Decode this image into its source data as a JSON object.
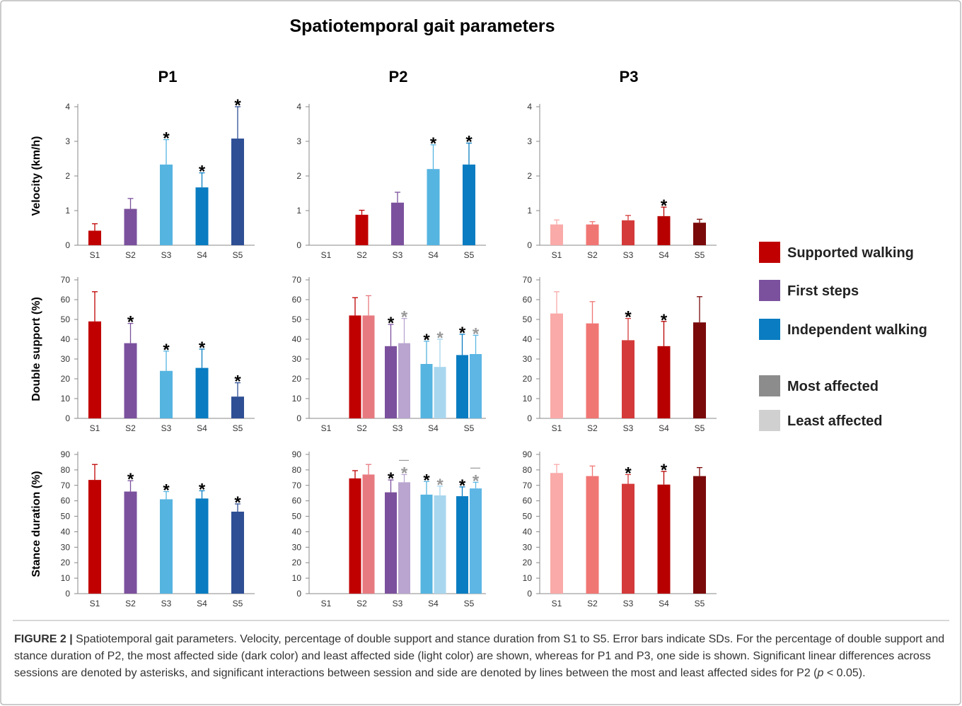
{
  "figure": {
    "title": "Spatiotemporal gait parameters",
    "columns": [
      "P1",
      "P2",
      "P3"
    ],
    "legend": [
      {
        "name": "Supported walking",
        "color": "#c00000"
      },
      {
        "name": "First steps",
        "color": "#7b519d"
      },
      {
        "name": "Independent walking",
        "color": "#0a7cc1"
      },
      {
        "name": "Most affected",
        "color": "#8c8c8c"
      },
      {
        "name": "Least affected",
        "color": "#d0d0d0"
      }
    ],
    "caption": {
      "label": "FIGURE 2 |",
      "text": " Spatiotemporal gait parameters. Velocity, percentage of double support and stance duration from S1 to S5. Error bars indicate SDs. For the percentage of double support and stance duration of P2, the most affected side (dark color) and least affected side (light color) are shown, whereas for P1 and P3, one side is shown. Significant linear differences across sessions are denoted by asterisks, and significant interactions between session and side are denoted by lines between the most and least affected sides for P2 (",
      "italic": "p",
      "end": " < 0.05)."
    }
  },
  "chart_data": [
    {
      "type": "bar",
      "ylabel": "Velocity (km/h)",
      "categories": [
        "S1",
        "S2",
        "S3",
        "S4",
        "S5"
      ],
      "ylim": [
        0,
        4
      ],
      "yticks": [
        0,
        1,
        2,
        3,
        4
      ],
      "series": [
        {
          "colors": [
            "#c00000",
            "#7b519d",
            "#56b4e0",
            "#0a7cc1",
            "#2e4f94"
          ],
          "values": [
            0.42,
            1.05,
            2.33,
            1.67,
            3.08
          ],
          "errors": [
            0.2,
            0.3,
            0.72,
            0.42,
            0.92
          ],
          "asterisks": [
            null,
            null,
            "*",
            "*",
            "*"
          ],
          "asterisk_color": "#000000"
        }
      ]
    },
    {
      "type": "bar",
      "categories": [
        "S1",
        "S2",
        "S3",
        "S4",
        "S5"
      ],
      "ylim": [
        0,
        4
      ],
      "yticks": [
        0,
        1,
        2,
        3,
        4
      ],
      "series": [
        {
          "colors": [
            null,
            "#c00000",
            "#7b519d",
            "#56b4e0",
            "#0a7cc1"
          ],
          "values": [
            null,
            0.88,
            1.23,
            2.2,
            2.33
          ],
          "errors": [
            null,
            0.13,
            0.3,
            0.7,
            0.62
          ],
          "asterisks": [
            null,
            null,
            null,
            "*",
            "*"
          ],
          "asterisk_color": "#000000"
        }
      ]
    },
    {
      "type": "bar",
      "categories": [
        "S1",
        "S2",
        "S3",
        "S4",
        "S5"
      ],
      "ylim": [
        0,
        4
      ],
      "yticks": [
        0,
        1,
        2,
        3,
        4
      ],
      "series": [
        {
          "colors": [
            "#f9aaa9",
            "#f07674",
            "#d43a3a",
            "#b70000",
            "#7a0a0a"
          ],
          "values": [
            0.6,
            0.6,
            0.72,
            0.84,
            0.65
          ],
          "errors": [
            0.13,
            0.08,
            0.14,
            0.26,
            0.1
          ],
          "asterisks": [
            null,
            null,
            null,
            "*",
            null
          ],
          "asterisk_color": "#000000"
        }
      ]
    },
    {
      "type": "bar",
      "ylabel": "Double support (%)",
      "categories": [
        "S1",
        "S2",
        "S3",
        "S4",
        "S5"
      ],
      "ylim": [
        0,
        70
      ],
      "yticks": [
        0,
        10,
        20,
        30,
        40,
        50,
        60,
        70
      ],
      "series": [
        {
          "colors": [
            "#c00000",
            "#7b519d",
            "#56b4e0",
            "#0a7cc1",
            "#2e4f94"
          ],
          "values": [
            49,
            38,
            24,
            25.5,
            11
          ],
          "errors": [
            15,
            10,
            10,
            9.5,
            7
          ],
          "asterisks": [
            null,
            "*",
            "*",
            "*",
            "*"
          ],
          "asterisk_color": "#000000"
        }
      ]
    },
    {
      "type": "bar",
      "categories": [
        "S1",
        "S2",
        "S3",
        "S4",
        "S5"
      ],
      "ylim": [
        0,
        70
      ],
      "yticks": [
        0,
        10,
        20,
        30,
        40,
        50,
        60,
        70
      ],
      "series": [
        {
          "colors": [
            null,
            "#c00000",
            "#7b519d",
            "#56b4e0",
            "#0a7cc1"
          ],
          "values": [
            null,
            52,
            36.5,
            27.5,
            32
          ],
          "errors": [
            null,
            9,
            11,
            11.5,
            10.5
          ],
          "asterisks": [
            null,
            null,
            "*",
            "*",
            "*"
          ],
          "asterisk_color": "#000000"
        },
        {
          "colors": [
            null,
            "#e77a80",
            "#b9a5cf",
            "#a8d6ee",
            "#5db6e4"
          ],
          "values": [
            null,
            52,
            38,
            26,
            32.5
          ],
          "errors": [
            null,
            10,
            12.5,
            14,
            9.5
          ],
          "asterisks": [
            null,
            null,
            "*",
            "*",
            "*"
          ],
          "asterisk_color": "#999999"
        }
      ]
    },
    {
      "type": "bar",
      "categories": [
        "S1",
        "S2",
        "S3",
        "S4",
        "S5"
      ],
      "ylim": [
        0,
        70
      ],
      "yticks": [
        0,
        10,
        20,
        30,
        40,
        50,
        60,
        70
      ],
      "series": [
        {
          "colors": [
            "#f9aaa9",
            "#f07674",
            "#d43a3a",
            "#b70000",
            "#7a0a0a"
          ],
          "values": [
            53,
            48,
            39.5,
            36.5,
            48.5
          ],
          "errors": [
            11,
            11,
            11,
            12.5,
            13
          ],
          "asterisks": [
            null,
            null,
            "*",
            "*",
            null
          ],
          "asterisk_color": "#000000"
        }
      ]
    },
    {
      "type": "bar",
      "ylabel": "Stance duration (%)",
      "categories": [
        "S1",
        "S2",
        "S3",
        "S4",
        "S5"
      ],
      "ylim": [
        0,
        90
      ],
      "yticks": [
        0,
        10,
        20,
        30,
        40,
        50,
        60,
        70,
        80,
        90
      ],
      "series": [
        {
          "colors": [
            "#c00000",
            "#7b519d",
            "#56b4e0",
            "#0a7cc1",
            "#2e4f94"
          ],
          "values": [
            73.5,
            66,
            61,
            61.5,
            53
          ],
          "errors": [
            10,
            7,
            5,
            5,
            5
          ],
          "asterisks": [
            null,
            "*",
            "*",
            "*",
            "*"
          ],
          "asterisk_color": "#000000"
        }
      ]
    },
    {
      "type": "bar",
      "categories": [
        "S1",
        "S2",
        "S3",
        "S4",
        "S5"
      ],
      "ylim": [
        0,
        90
      ],
      "yticks": [
        0,
        10,
        20,
        30,
        40,
        50,
        60,
        70,
        80,
        90
      ],
      "interaction": [
        false,
        false,
        true,
        false,
        true
      ],
      "series": [
        {
          "colors": [
            null,
            "#c00000",
            "#7b519d",
            "#56b4e0",
            "#0a7cc1"
          ],
          "values": [
            null,
            74.5,
            65.5,
            64,
            63
          ],
          "errors": [
            null,
            5,
            8,
            8.5,
            6
          ],
          "asterisks": [
            null,
            null,
            "*",
            "*",
            "*"
          ],
          "asterisk_color": "#000000"
        },
        {
          "colors": [
            null,
            "#e77a80",
            "#b9a5cf",
            "#a8d6ee",
            "#5db6e4"
          ],
          "values": [
            null,
            77,
            72,
            63.5,
            68
          ],
          "errors": [
            null,
            6.5,
            5,
            6,
            4
          ],
          "asterisks": [
            null,
            null,
            "*",
            "*",
            "*"
          ],
          "asterisk_color": "#999999"
        }
      ]
    },
    {
      "type": "bar",
      "categories": [
        "S1",
        "S2",
        "S3",
        "S4",
        "S5"
      ],
      "ylim": [
        0,
        90
      ],
      "yticks": [
        0,
        10,
        20,
        30,
        40,
        50,
        60,
        70,
        80,
        90
      ],
      "series": [
        {
          "colors": [
            "#f9aaa9",
            "#f07674",
            "#d43a3a",
            "#b70000",
            "#7a0a0a"
          ],
          "values": [
            78,
            76,
            71,
            70.5,
            76
          ],
          "errors": [
            5.5,
            6.5,
            6,
            8.5,
            5.5
          ],
          "asterisks": [
            null,
            null,
            "*",
            "*",
            null
          ],
          "asterisk_color": "#000000"
        }
      ]
    }
  ]
}
